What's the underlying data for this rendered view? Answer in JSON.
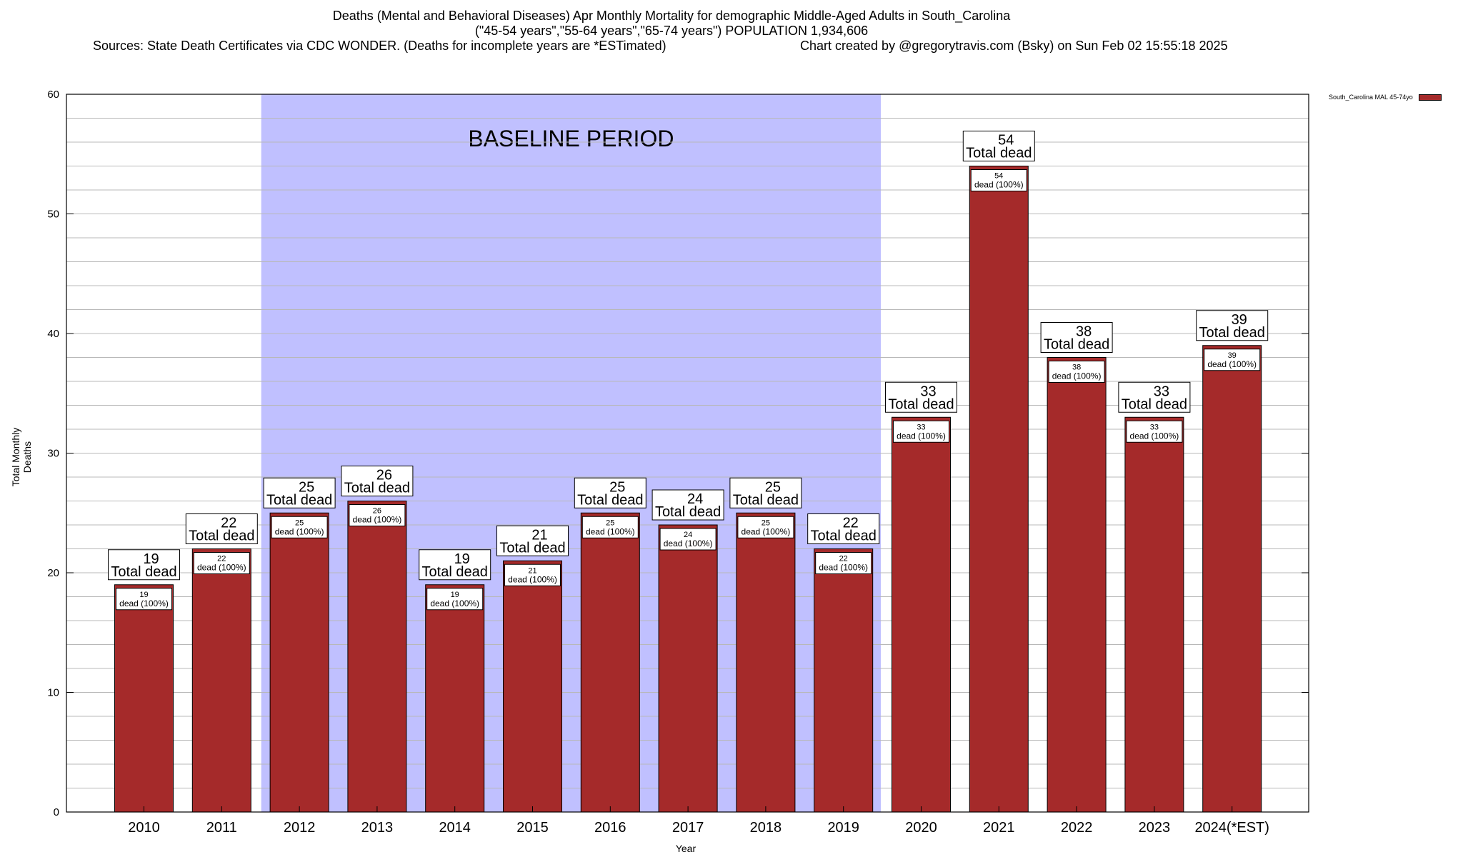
{
  "header": {
    "line1": "Deaths (Mental and Behavioral Diseases) Apr Monthly Mortality for demographic Middle-Aged Adults in South_Carolina",
    "line2": "(\"45-54 years\",\"55-64 years\",\"65-74 years\") POPULATION 1,934,606",
    "sources": "Sources: State Death Certificates via CDC WONDER. (Deaths for incomplete years are *ESTimated)",
    "credit": "Chart created by @gregorytravis.com (Bsky) on Sun Feb 02 15:55:18 2025"
  },
  "chart_data": {
    "type": "bar",
    "title": "Deaths (Mental and Behavioral Diseases) Apr Monthly Mortality for demographic Middle-Aged Adults in South_Carolina",
    "xlabel": "Year",
    "ylabel": "Total Monthly Deaths",
    "ylim": [
      0,
      60
    ],
    "yticks": [
      0,
      10,
      20,
      30,
      40,
      50,
      60
    ],
    "grid": true,
    "legend_position": "top-right",
    "categories": [
      "2010",
      "2011",
      "2012",
      "2013",
      "2014",
      "2015",
      "2016",
      "2017",
      "2018",
      "2019",
      "2020",
      "2021",
      "2022",
      "2023",
      "2024(*EST)"
    ],
    "series": [
      {
        "name": "South_Carolina MAL 45-74yo",
        "values": [
          19,
          22,
          25,
          26,
          19,
          21,
          25,
          24,
          25,
          22,
          33,
          54,
          38,
          33,
          39
        ],
        "color": "#a52a2a"
      }
    ],
    "total_label": "Total dead",
    "inner_label": "dead (100%)",
    "baseline": {
      "label": "BASELINE PERIOD",
      "start": "2012",
      "end": "2019",
      "color": "#c0c0ff"
    }
  }
}
